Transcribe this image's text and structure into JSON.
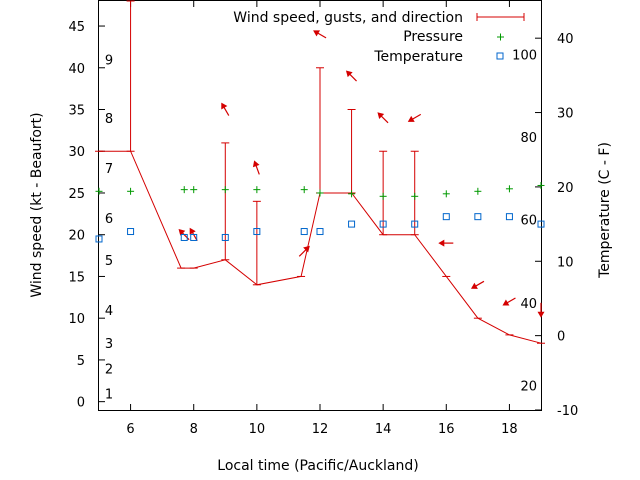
{
  "chart_data": {
    "type": "line",
    "xlabel": "Local time (Pacific/Auckland)",
    "ylabel_left": "Wind speed (kt - Beaufort)",
    "ylabel_right": "Temperature (C - F)",
    "xlim": [
      5,
      19
    ],
    "ylim_left": [
      -1,
      48
    ],
    "ylim_right": [
      -10,
      45
    ],
    "x_ticks": [
      6,
      8,
      10,
      12,
      14,
      16,
      18
    ],
    "y_left_ticks": [
      0,
      5,
      10,
      15,
      20,
      25,
      30,
      35,
      40,
      45
    ],
    "y_right_ticks": [
      -10,
      0,
      10,
      20,
      30,
      40
    ],
    "beaufort_labels": [
      {
        "label": "1",
        "kt": 1
      },
      {
        "label": "2",
        "kt": 4
      },
      {
        "label": "3",
        "kt": 7
      },
      {
        "label": "4",
        "kt": 11
      },
      {
        "label": "5",
        "kt": 17
      },
      {
        "label": "6",
        "kt": 22
      },
      {
        "label": "7",
        "kt": 28
      },
      {
        "label": "8",
        "kt": 34
      },
      {
        "label": "9",
        "kt": 41
      }
    ],
    "fahrenheit_labels": [
      {
        "label": "20",
        "temp_c": -6.7
      },
      {
        "label": "40",
        "temp_c": 4.4
      },
      {
        "label": "60",
        "temp_c": 15.6
      },
      {
        "label": "80",
        "temp_c": 26.7
      },
      {
        "label": "100",
        "temp_c": 37.8
      }
    ],
    "legend": {
      "wind": "Wind speed, gusts, and direction",
      "pressure": "Pressure",
      "temperature": "Temperature"
    },
    "colors": {
      "wind": "#d40000",
      "pressure": "#009900",
      "temperature": "#0066cc"
    },
    "series": [
      {
        "name": "Wind speed, gusts, and direction",
        "points": [
          {
            "x": 5.0,
            "speed": 30,
            "gust": 30
          },
          {
            "x": 6.0,
            "speed": 30,
            "gust": 48
          },
          {
            "x": 7.6,
            "speed": 16,
            "gust": 16
          },
          {
            "x": 8.0,
            "speed": 16,
            "gust": 16
          },
          {
            "x": 9.0,
            "speed": 17,
            "gust": 31
          },
          {
            "x": 10.0,
            "speed": 14,
            "gust": 24
          },
          {
            "x": 11.4,
            "speed": 15,
            "gust": 15
          },
          {
            "x": 12.0,
            "speed": 25,
            "gust": 40
          },
          {
            "x": 13.0,
            "speed": 25,
            "gust": 35
          },
          {
            "x": 14.0,
            "speed": 20,
            "gust": 30
          },
          {
            "x": 15.0,
            "speed": 20,
            "gust": 30
          },
          {
            "x": 16.0,
            "speed": 15,
            "gust": 15
          },
          {
            "x": 17.0,
            "speed": 10,
            "gust": 10
          },
          {
            "x": 18.0,
            "speed": 8,
            "gust": 8
          },
          {
            "x": 19.0,
            "speed": 7,
            "gust": 7
          }
        ]
      },
      {
        "name": "Pressure",
        "points": [
          {
            "x": 5.0,
            "y": 25.2
          },
          {
            "x": 6.0,
            "y": 25.2
          },
          {
            "x": 7.7,
            "y": 25.4
          },
          {
            "x": 8.0,
            "y": 25.4
          },
          {
            "x": 9.0,
            "y": 25.4
          },
          {
            "x": 10.0,
            "y": 25.4
          },
          {
            "x": 11.5,
            "y": 25.4
          },
          {
            "x": 12.0,
            "y": 25.0
          },
          {
            "x": 13.0,
            "y": 24.9
          },
          {
            "x": 14.0,
            "y": 24.6
          },
          {
            "x": 15.0,
            "y": 24.6
          },
          {
            "x": 16.0,
            "y": 24.9
          },
          {
            "x": 17.0,
            "y": 25.2
          },
          {
            "x": 18.0,
            "y": 25.5
          },
          {
            "x": 19.0,
            "y": 25.9
          }
        ]
      },
      {
        "name": "Temperature",
        "points": [
          {
            "x": 5.0,
            "y": 13.0
          },
          {
            "x": 6.0,
            "y": 14.0
          },
          {
            "x": 7.7,
            "y": 13.2
          },
          {
            "x": 8.0,
            "y": 13.2
          },
          {
            "x": 9.0,
            "y": 13.2
          },
          {
            "x": 10.0,
            "y": 14.0
          },
          {
            "x": 11.5,
            "y": 14.0
          },
          {
            "x": 12.0,
            "y": 14.0
          },
          {
            "x": 13.0,
            "y": 15.0
          },
          {
            "x": 14.0,
            "y": 15.0
          },
          {
            "x": 15.0,
            "y": 15.0
          },
          {
            "x": 16.0,
            "y": 16.0
          },
          {
            "x": 17.0,
            "y": 16.0
          },
          {
            "x": 18.0,
            "y": 16.0
          },
          {
            "x": 19.0,
            "y": 15.0
          }
        ]
      }
    ],
    "wind_direction_arrows": [
      {
        "x": 7.7,
        "kt": 20,
        "dir_deg": 135
      },
      {
        "x": 8.0,
        "kt": 20,
        "dir_deg": 150
      },
      {
        "x": 9.0,
        "kt": 35,
        "dir_deg": 150
      },
      {
        "x": 10.0,
        "kt": 28,
        "dir_deg": 160
      },
      {
        "x": 11.5,
        "kt": 18,
        "dir_deg": 225
      },
      {
        "x": 12.0,
        "kt": 44,
        "dir_deg": 120
      },
      {
        "x": 13.0,
        "kt": 39,
        "dir_deg": 135
      },
      {
        "x": 14.0,
        "kt": 34,
        "dir_deg": 135
      },
      {
        "x": 15.0,
        "kt": 34,
        "dir_deg": 60
      },
      {
        "x": 16.0,
        "kt": 19,
        "dir_deg": 90
      },
      {
        "x": 17.0,
        "kt": 14,
        "dir_deg": 60
      },
      {
        "x": 18.0,
        "kt": 12,
        "dir_deg": 60
      },
      {
        "x": 19.0,
        "kt": 11,
        "dir_deg": 0
      }
    ]
  }
}
